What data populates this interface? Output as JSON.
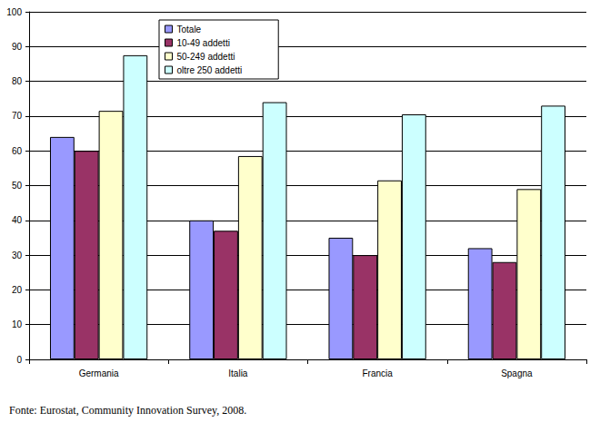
{
  "chart_data": {
    "type": "bar",
    "categories": [
      "Germania",
      "Italia",
      "Francia",
      "Spagna"
    ],
    "series": [
      {
        "name": "Totale",
        "color": "#9999ff",
        "values": [
          64,
          40,
          35,
          32
        ]
      },
      {
        "name": "10-49 addetti",
        "color": "#993366",
        "values": [
          60,
          37,
          30,
          28
        ]
      },
      {
        "name": "50-249 addetti",
        "color": "#ffffcc",
        "values": [
          71.5,
          58.5,
          51.5,
          49
        ]
      },
      {
        "name": "oltre 250 addetti",
        "color": "#ccffff",
        "values": [
          87.5,
          74,
          70.5,
          73
        ]
      }
    ],
    "ylim": [
      0,
      100
    ],
    "yticks": [
      0,
      10,
      20,
      30,
      40,
      50,
      60,
      70,
      80,
      90,
      100
    ],
    "grid": true,
    "legend": "top",
    "annotations": [
      "Fonte: Eurostat, Community Innovation Survey, 2008."
    ]
  }
}
